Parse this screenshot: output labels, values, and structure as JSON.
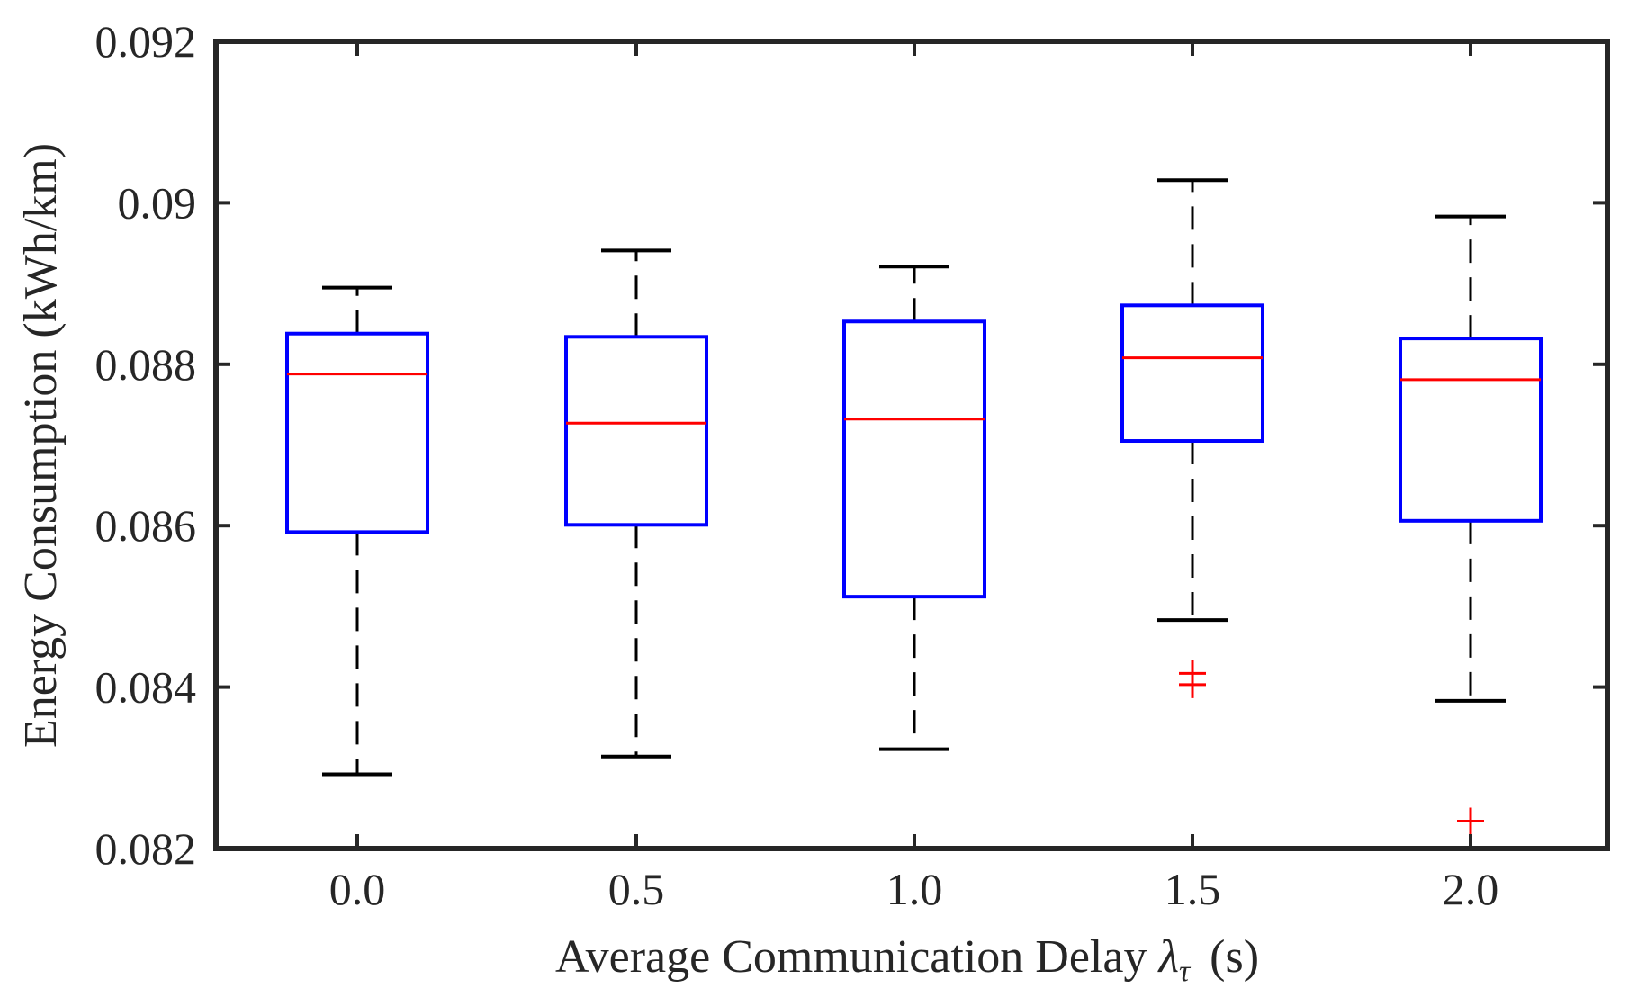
{
  "chart_data": {
    "type": "box",
    "xlabel_prefix": "Average Communication Delay",
    "xlabel_symbol": "λ",
    "xlabel_subscript": "τ",
    "xlabel_suffix": "(s)",
    "ylabel": "Energy Consumption (kWh/km)",
    "ylim": [
      0.082,
      0.092
    ],
    "yticks": [
      "0.082",
      "0.084",
      "0.086",
      "0.088",
      "0.09",
      "0.092"
    ],
    "ytick_values": [
      0.082,
      0.084,
      0.086,
      0.088,
      0.09,
      0.092
    ],
    "categories": [
      "0.0",
      "0.5",
      "1.0",
      "1.5",
      "2.0"
    ],
    "boxes": [
      {
        "category": "0.0",
        "whisker_low": 0.08292,
        "q1": 0.08592,
        "median": 0.08788,
        "q3": 0.08838,
        "whisker_high": 0.08895,
        "outliers": []
      },
      {
        "category": "0.5",
        "whisker_low": 0.08314,
        "q1": 0.08601,
        "median": 0.08727,
        "q3": 0.08834,
        "whisker_high": 0.08941,
        "outliers": []
      },
      {
        "category": "1.0",
        "whisker_low": 0.08323,
        "q1": 0.08512,
        "median": 0.08732,
        "q3": 0.08853,
        "whisker_high": 0.08921,
        "outliers": []
      },
      {
        "category": "1.5",
        "whisker_low": 0.08483,
        "q1": 0.08705,
        "median": 0.08808,
        "q3": 0.08873,
        "whisker_high": 0.09028,
        "outliers": [
          0.08417,
          0.08403
        ]
      },
      {
        "category": "2.0",
        "whisker_low": 0.08383,
        "q1": 0.08606,
        "median": 0.08781,
        "q3": 0.08832,
        "whisker_high": 0.08983,
        "outliers": [
          0.08234
        ]
      }
    ],
    "colors": {
      "box": "#0000ff",
      "median": "#ff0000",
      "whisker": "#000000",
      "outlier": "#ff0000",
      "axes": "#262626"
    }
  }
}
